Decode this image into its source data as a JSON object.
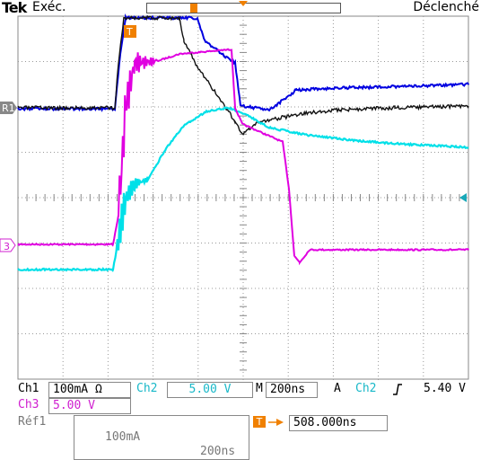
{
  "header": {
    "brand": "Tek",
    "mode": "Exéc.",
    "trigger_state": "Déclenché"
  },
  "markers": {
    "ch1": "1",
    "ch3": "3",
    "ref1": "R1",
    "trigger": "T"
  },
  "readouts": {
    "ch1_label": "Ch1",
    "ch1_scale": "100mA Ω",
    "ch2_label": "Ch2",
    "ch2_scale": "5.00 V",
    "ch3_label": "Ch3",
    "ch3_scale": "5.00 V",
    "time_label": "M",
    "time_scale": "200ns",
    "trig_mode": "A",
    "trig_source": "Ch2",
    "trig_slope_icon": "rising-edge-icon",
    "trig_level": "5.40 V",
    "ref_label": "Réf1",
    "ref_scale": "100mA",
    "ref_time": "200ns",
    "position": "508.000ns"
  },
  "colors": {
    "ch1": "#000000",
    "ch2": "#00e0e8",
    "ch3": "#e000e0",
    "ref1": "#0000e0",
    "trigger": "#f08000",
    "grid": "#888888"
  }
}
